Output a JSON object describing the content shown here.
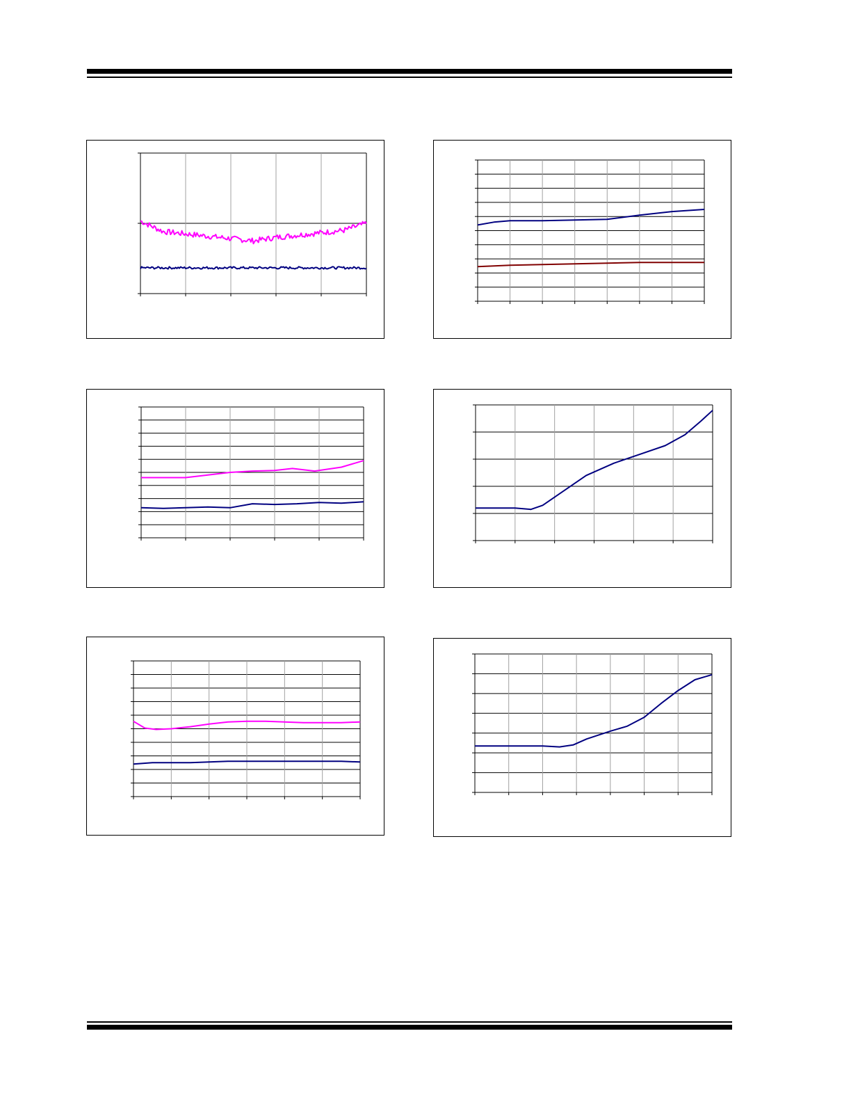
{
  "colors": {
    "magenta": "#ff00ff",
    "navy": "#000080",
    "dark_red": "#800000",
    "grid": "#000000",
    "grid_light": "#a0a0a0"
  },
  "chart_data": [
    {
      "id": "chart-1",
      "type": "line",
      "title": "",
      "xlabel": "",
      "ylabel": "",
      "xlim": [
        0,
        100
      ],
      "ylim": [
        0,
        6
      ],
      "grid": true,
      "x_tick_count": 6,
      "y_tick_count": 3,
      "series": [
        {
          "color": "magenta",
          "noise": 0.12,
          "x": [
            0,
            10,
            20,
            30,
            40,
            50,
            60,
            70,
            80,
            90,
            100
          ],
          "y": [
            3.1,
            2.65,
            2.55,
            2.45,
            2.35,
            2.25,
            2.4,
            2.5,
            2.6,
            2.7,
            3.0
          ]
        },
        {
          "color": "navy",
          "noise": 0.05,
          "x": [
            0,
            50,
            100
          ],
          "y": [
            1.1,
            1.1,
            1.1
          ]
        }
      ]
    },
    {
      "id": "chart-2",
      "type": "line",
      "title": "",
      "xlabel": "",
      "ylabel": "",
      "xlim": [
        0,
        7
      ],
      "ylim": [
        0,
        10
      ],
      "grid": true,
      "x_tick_count": 8,
      "y_tick_count": 11,
      "series": [
        {
          "color": "navy",
          "x": [
            0,
            0.5,
            1,
            2,
            3,
            4,
            5,
            6,
            7
          ],
          "y": [
            5.4,
            5.6,
            5.7,
            5.7,
            5.75,
            5.8,
            6.1,
            6.35,
            6.5
          ]
        },
        {
          "color": "dark_red",
          "x": [
            0,
            1,
            2,
            3,
            4,
            5,
            6,
            7
          ],
          "y": [
            2.45,
            2.55,
            2.6,
            2.65,
            2.7,
            2.75,
            2.75,
            2.75
          ]
        }
      ]
    },
    {
      "id": "chart-3",
      "type": "line",
      "title": "",
      "xlabel": "",
      "ylabel": "",
      "xlim": [
        0,
        5
      ],
      "ylim": [
        0,
        10
      ],
      "grid": true,
      "x_tick_count": 6,
      "y_tick_count": 11,
      "series": [
        {
          "color": "magenta",
          "x": [
            0,
            0.5,
            1,
            1.5,
            2,
            2.5,
            3,
            3.4,
            3.9,
            4.5,
            5
          ],
          "y": [
            4.6,
            4.6,
            4.6,
            4.8,
            5.0,
            5.1,
            5.15,
            5.3,
            5.1,
            5.4,
            5.9
          ]
        },
        {
          "color": "navy",
          "x": [
            0,
            0.5,
            1,
            1.5,
            2,
            2.5,
            3,
            3.5,
            4,
            4.5,
            5
          ],
          "y": [
            2.3,
            2.25,
            2.3,
            2.35,
            2.3,
            2.6,
            2.55,
            2.6,
            2.7,
            2.65,
            2.75
          ]
        }
      ]
    },
    {
      "id": "chart-4",
      "type": "line",
      "title": "",
      "xlabel": "",
      "ylabel": "",
      "xlim": [
        0,
        6
      ],
      "ylim": [
        0,
        5
      ],
      "grid": true,
      "x_tick_count": 7,
      "y_tick_count": 6,
      "series": [
        {
          "color": "navy",
          "x": [
            0,
            0.5,
            1,
            1.4,
            1.7,
            2.2,
            2.8,
            3.5,
            4.2,
            4.8,
            5.3,
            5.7,
            6
          ],
          "y": [
            1.2,
            1.2,
            1.2,
            1.15,
            1.3,
            1.8,
            2.4,
            2.85,
            3.2,
            3.5,
            3.9,
            4.4,
            4.8
          ]
        }
      ]
    },
    {
      "id": "chart-5",
      "type": "line",
      "title": "",
      "xlabel": "",
      "ylabel": "",
      "xlim": [
        0,
        6
      ],
      "ylim": [
        0,
        10
      ],
      "grid": true,
      "x_tick_count": 7,
      "y_tick_count": 11,
      "series": [
        {
          "color": "magenta",
          "x": [
            0,
            0.3,
            0.6,
            1,
            1.5,
            2,
            2.5,
            3,
            3.5,
            4,
            4.5,
            5,
            5.5,
            6
          ],
          "y": [
            5.55,
            5.05,
            4.95,
            5.0,
            5.15,
            5.35,
            5.5,
            5.55,
            5.55,
            5.5,
            5.45,
            5.45,
            5.45,
            5.5
          ]
        },
        {
          "color": "navy",
          "x": [
            0,
            0.5,
            1,
            1.5,
            2,
            2.5,
            3,
            3.5,
            4,
            4.5,
            5,
            5.5,
            6
          ],
          "y": [
            2.4,
            2.5,
            2.5,
            2.5,
            2.55,
            2.6,
            2.6,
            2.6,
            2.6,
            2.6,
            2.6,
            2.6,
            2.55
          ]
        }
      ]
    },
    {
      "id": "chart-6",
      "type": "line",
      "title": "",
      "xlabel": "",
      "ylabel": "",
      "xlim": [
        0,
        7
      ],
      "ylim": [
        0,
        7
      ],
      "grid": true,
      "x_tick_count": 8,
      "y_tick_count": 8,
      "series": [
        {
          "color": "navy",
          "x": [
            0,
            1,
            2,
            2.5,
            2.9,
            3.3,
            4,
            4.5,
            5,
            5.5,
            6,
            6.5,
            7
          ],
          "y": [
            2.35,
            2.35,
            2.35,
            2.3,
            2.4,
            2.7,
            3.1,
            3.35,
            3.8,
            4.5,
            5.15,
            5.7,
            5.95
          ]
        }
      ]
    }
  ]
}
